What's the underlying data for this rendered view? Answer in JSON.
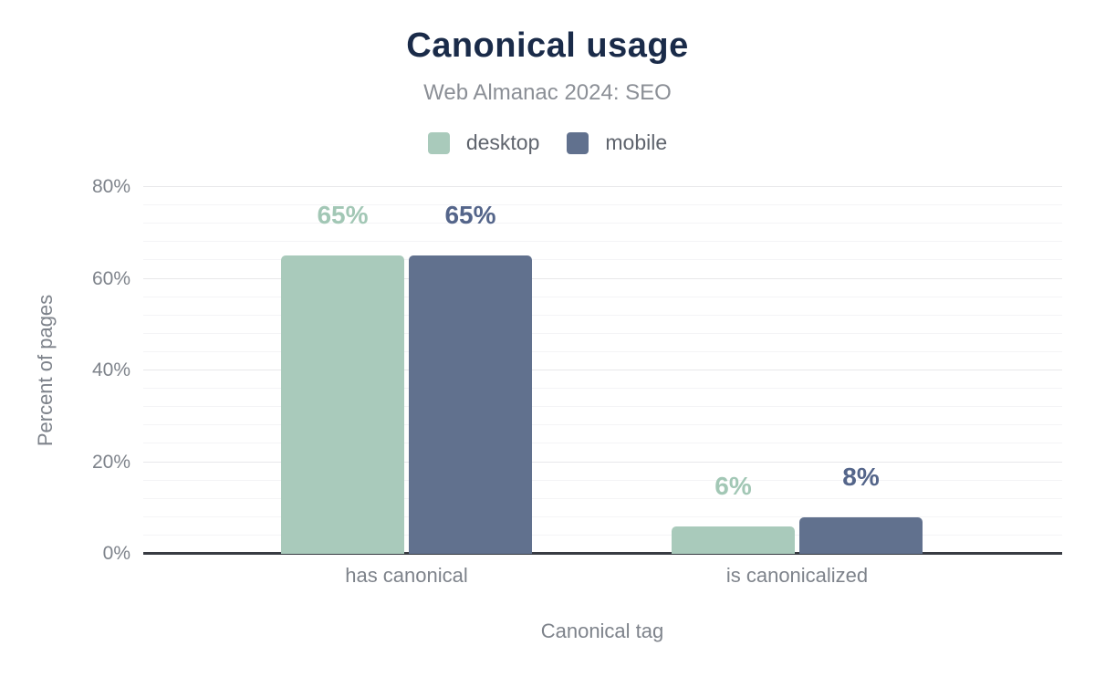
{
  "card": {
    "title": "Canonical usage",
    "subtitle": "Web Almanac 2024: SEO"
  },
  "chart_data": {
    "type": "bar",
    "title": "Canonical usage",
    "subtitle": "Web Almanac 2024: SEO",
    "categories": [
      "has canonical",
      "is canonicalized"
    ],
    "series": [
      {
        "name": "desktop",
        "values": [
          65,
          6
        ],
        "labels": [
          "65%",
          "6%"
        ],
        "color": "#a9cabb",
        "label_color": "#a2c7b5"
      },
      {
        "name": "mobile",
        "values": [
          65,
          8
        ],
        "labels": [
          "65%",
          "8%"
        ],
        "color": "#61718e",
        "label_color": "#54658a"
      }
    ],
    "xlabel": "Canonical tag",
    "ylabel": "Percent of pages",
    "ylim": [
      0,
      80
    ],
    "yticks": [
      0,
      20,
      40,
      60,
      80
    ],
    "ytick_labels": [
      "0%",
      "20%",
      "40%",
      "60%",
      "80%"
    ],
    "major_gridline_step": 20,
    "minor_gridline_step": 4,
    "grid": "on",
    "legend_position": "top"
  },
  "colors": {
    "title": "#1a2b49",
    "subtitle": "#8b8f96",
    "axis_text": "#7e838b",
    "legend_text": "#5f646d",
    "gridline_major": "#e8e8ea",
    "gridline_minor": "#f4f4f6",
    "axis_line": "#383b42",
    "background": "#ffffff"
  }
}
